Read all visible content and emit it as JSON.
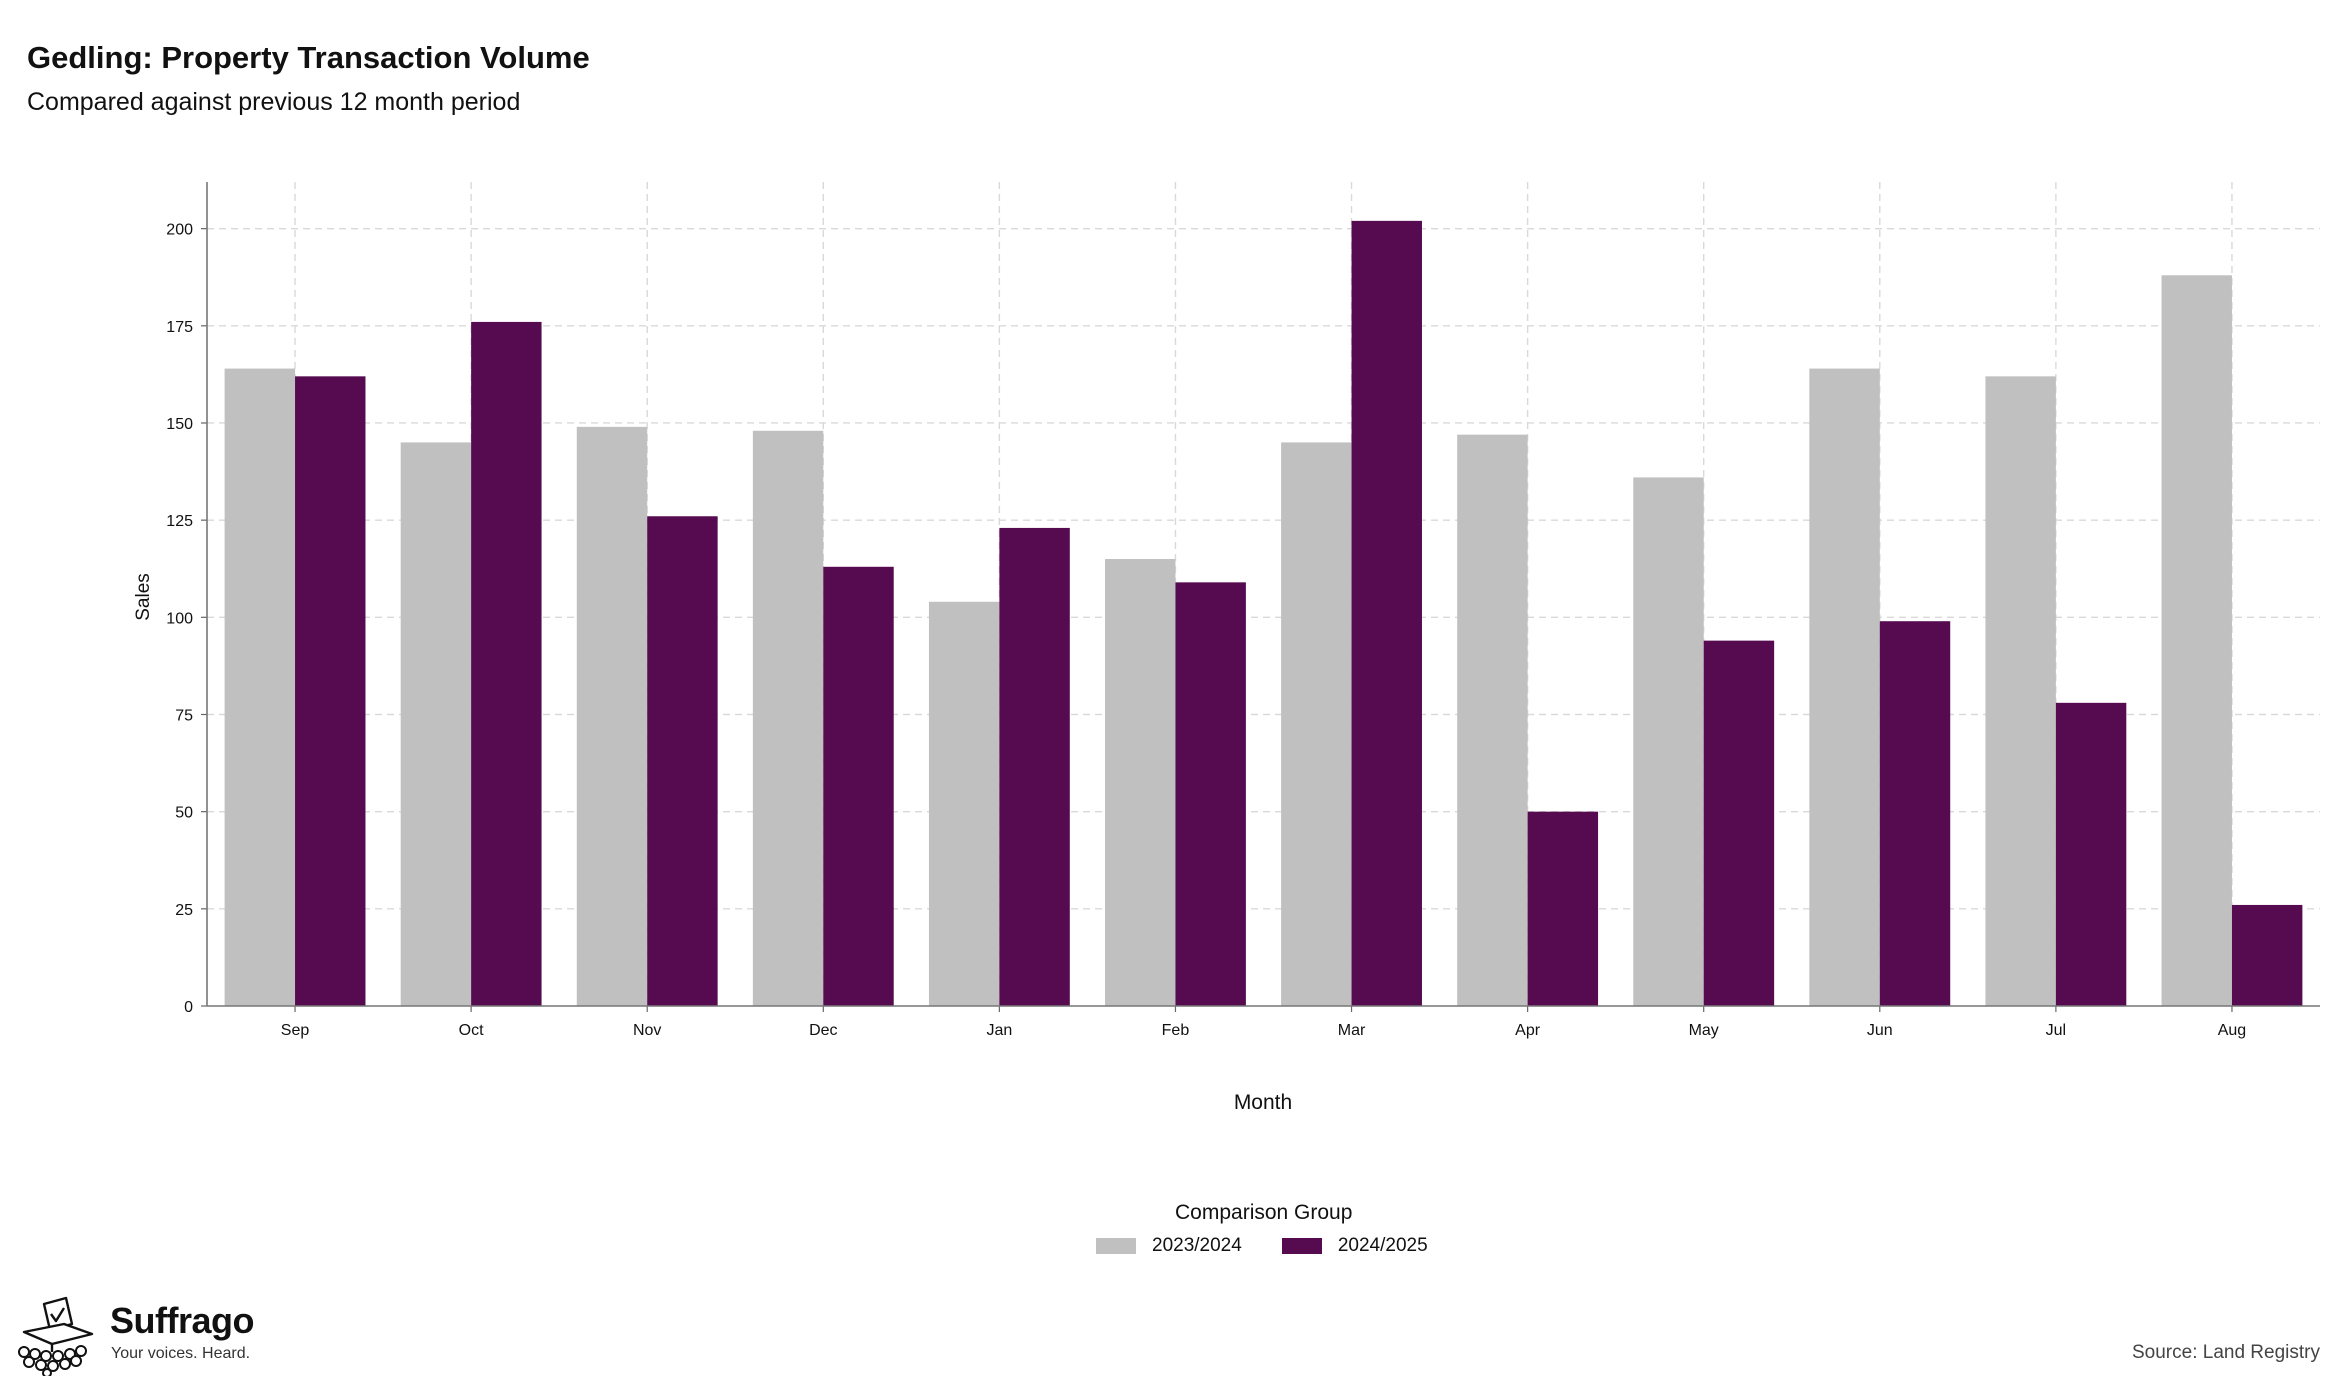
{
  "header": {
    "title": "Gedling: Property Transaction Volume",
    "subtitle": "Compared against previous 12 month period"
  },
  "chart_data": {
    "type": "bar",
    "categories": [
      "Sep",
      "Oct",
      "Nov",
      "Dec",
      "Jan",
      "Feb",
      "Mar",
      "Apr",
      "May",
      "Jun",
      "Jul",
      "Aug"
    ],
    "series": [
      {
        "name": "2023/2024",
        "color": "#c0c0c0",
        "values": [
          164,
          145,
          149,
          148,
          104,
          115,
          145,
          147,
          136,
          164,
          162,
          188
        ]
      },
      {
        "name": "2024/2025",
        "color": "#560b51",
        "values": [
          162,
          176,
          126,
          113,
          123,
          109,
          202,
          50,
          94,
          99,
          78,
          26
        ]
      }
    ],
    "xlabel": "Month",
    "ylabel": "Sales",
    "ylim": [
      0,
      212
    ],
    "yticks": [
      0,
      25,
      50,
      75,
      100,
      125,
      150,
      175,
      200
    ],
    "grid": true,
    "legend": {
      "title": "Comparison Group",
      "position": "bottom-center"
    }
  },
  "footer": {
    "brand_name": "Suffrago",
    "brand_tagline": "Your voices. Heard.",
    "source": "Source: Land Registry"
  }
}
